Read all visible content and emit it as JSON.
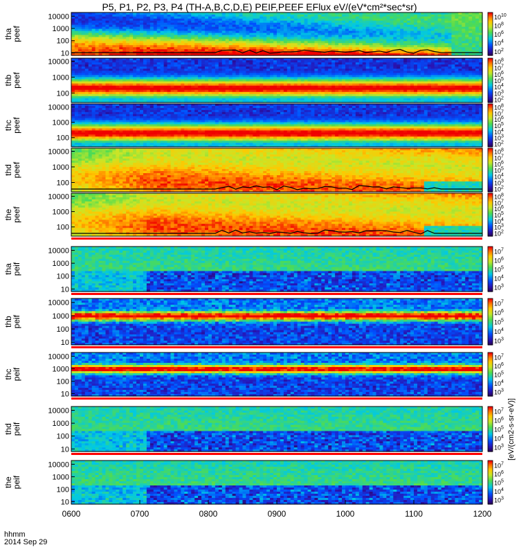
{
  "title": "P5, P1, P2, P3, P4 (TH-A,B,C,D,E) PEIF,PEEF EFlux eV/(eV*cm²*sec*sr)",
  "footer": {
    "line1": "hhmm",
    "line2": "2014 Sep 29"
  },
  "colors": {
    "accent": "#ff0000",
    "frame": "#000000"
  },
  "chart_data": {
    "type": "heatmap",
    "title": "P5, P1, P2, P3, P4 (TH-A,B,C,D,E) PEIF,PEEF EFlux eV/(eV*cm²*sec*sr)",
    "x_ticks": [
      "0600",
      "0700",
      "0800",
      "0900",
      "1000",
      "1100",
      "1200"
    ],
    "x_range": [
      "0600",
      "1200"
    ],
    "y_scale": "log",
    "colorbar_units": "[eV/(cm2-s-sr-eV)]",
    "panels": [
      {
        "probe": "tha",
        "product": "peef",
        "label": "tha\npeef",
        "y_ticks": [
          "10",
          "100",
          "1000",
          "10000"
        ],
        "cbar_ticks": [
          "10^2",
          "10^4",
          "10^6",
          "10^8",
          "10^10"
        ],
        "style": "green",
        "has_line": true
      },
      {
        "probe": "thb",
        "product": "peef",
        "label": "thb\npeef",
        "y_ticks": [
          "100",
          "1000",
          "10000"
        ],
        "cbar_ticks": [
          "10^2",
          "10^3",
          "10^4",
          "10^5",
          "10^6",
          "10^7",
          "10^8"
        ],
        "style": "red_band",
        "has_line": false
      },
      {
        "probe": "thc",
        "product": "peef",
        "label": "thc\npeef",
        "y_ticks": [
          "100",
          "1000",
          "10000"
        ],
        "cbar_ticks": [
          "10^2",
          "10^3",
          "10^4",
          "10^5",
          "10^6",
          "10^7",
          "10^8"
        ],
        "style": "red_band",
        "has_line": false
      },
      {
        "probe": "thd",
        "product": "peef",
        "label": "thd\npeef",
        "y_ticks": [
          "100",
          "1000",
          "10000"
        ],
        "cbar_ticks": [
          "10^2",
          "10^3",
          "10^4",
          "10^5",
          "10^6",
          "10^7",
          "10^8"
        ],
        "style": "red",
        "has_line": true
      },
      {
        "probe": "the",
        "product": "peef",
        "label": "the\npeef",
        "y_ticks": [
          "100",
          "1000",
          "10000"
        ],
        "cbar_ticks": [
          "10^2",
          "10^3",
          "10^4",
          "10^5",
          "10^6",
          "10^7",
          "10^8"
        ],
        "style": "red",
        "has_line": true
      },
      {
        "probe": "tha",
        "product": "peif",
        "label": "tha\npeif",
        "y_ticks": [
          "10",
          "100",
          "1000",
          "10000"
        ],
        "cbar_ticks": [
          "10^3",
          "10^4",
          "10^5",
          "10^6",
          "10^7"
        ],
        "style": "ion_green",
        "has_line": false
      },
      {
        "probe": "thb",
        "product": "peif",
        "label": "thb\npeif",
        "y_ticks": [
          "10",
          "100",
          "1000",
          "10000"
        ],
        "cbar_ticks": [
          "10^3",
          "10^4",
          "10^5",
          "10^6",
          "10^7"
        ],
        "style": "ion_band",
        "has_line": false
      },
      {
        "probe": "thc",
        "product": "peif",
        "label": "thc\npeif",
        "y_ticks": [
          "10",
          "100",
          "1000",
          "10000"
        ],
        "cbar_ticks": [
          "10^3",
          "10^4",
          "10^5",
          "10^6",
          "10^7"
        ],
        "style": "ion_band",
        "has_line": false
      },
      {
        "probe": "thd",
        "product": "peif",
        "label": "thd\npeif",
        "y_ticks": [
          "10",
          "100",
          "1000",
          "10000"
        ],
        "cbar_ticks": [
          "10^3",
          "10^4",
          "10^5",
          "10^6",
          "10^7"
        ],
        "style": "ion_green",
        "has_line": false
      },
      {
        "probe": "the",
        "product": "peif",
        "label": "the\npeif",
        "y_ticks": [
          "10",
          "100",
          "1000",
          "10000"
        ],
        "cbar_ticks": [
          "10^3",
          "10^4",
          "10^5",
          "10^6",
          "10^7"
        ],
        "style": "ion_green",
        "has_line": false
      }
    ]
  }
}
